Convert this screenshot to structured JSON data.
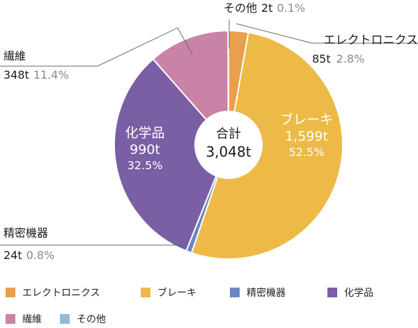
{
  "chart_data": {
    "type": "pie",
    "variant": "donut",
    "center_label": {
      "title": "合計",
      "total": "3,048t"
    },
    "slices": [
      {
        "name": "エレクトロニクス",
        "value": 85,
        "value_label": "85t",
        "percent": 2.8,
        "percent_label": "2.8%",
        "color": "#E8A04F"
      },
      {
        "name": "ブレーキ",
        "value": 1599,
        "value_label": "1,599t",
        "percent": 52.5,
        "percent_label": "52.5%",
        "color": "#EDBA47"
      },
      {
        "name": "精密機器",
        "value": 24,
        "value_label": "24t",
        "percent": 0.8,
        "percent_label": "0.8%",
        "color": "#6A86C4"
      },
      {
        "name": "化学品",
        "value": 990,
        "value_label": "990t",
        "percent": 32.5,
        "percent_label": "32.5%",
        "color": "#7A5FA5"
      },
      {
        "name": "繊維",
        "value": 348,
        "value_label": "348t",
        "percent": 11.4,
        "percent_label": "11.4%",
        "color": "#C883A6"
      },
      {
        "name": "その他",
        "value": 2,
        "value_label": "2t",
        "percent": 0.1,
        "percent_label": "0.1%",
        "color": "#92BBD6"
      }
    ],
    "legend": [
      "エレクトロニクス",
      "ブレーキ",
      "精密機器",
      "化学品",
      "繊維",
      "その他"
    ],
    "legend_position": "bottom"
  }
}
